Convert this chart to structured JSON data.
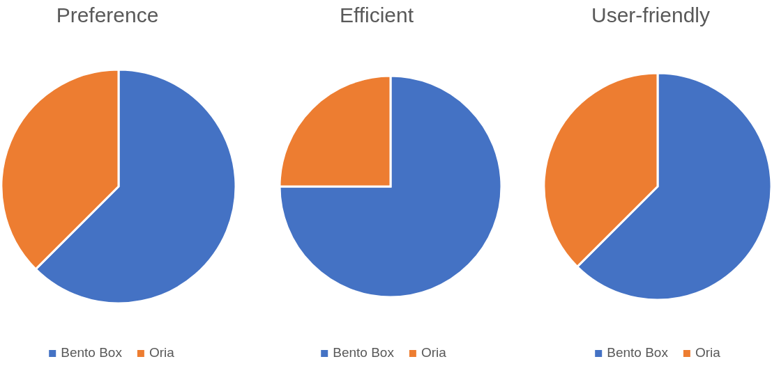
{
  "chart_data": [
    {
      "type": "pie",
      "title": "Preference",
      "categories": [
        "Bento Box",
        "Oria"
      ],
      "values": [
        62.5,
        37.5
      ],
      "colors": [
        "#4472c4",
        "#ed7d31"
      ],
      "legend": "bottom"
    },
    {
      "type": "pie",
      "title": "Efficient",
      "categories": [
        "Bento Box",
        "Oria"
      ],
      "values": [
        75,
        25
      ],
      "colors": [
        "#4472c4",
        "#ed7d31"
      ],
      "legend": "bottom"
    },
    {
      "type": "pie",
      "title": "User-friendly",
      "categories": [
        "Bento Box",
        "Oria"
      ],
      "values": [
        62.5,
        37.5
      ],
      "colors": [
        "#4472c4",
        "#ed7d31"
      ],
      "legend": "bottom"
    }
  ]
}
